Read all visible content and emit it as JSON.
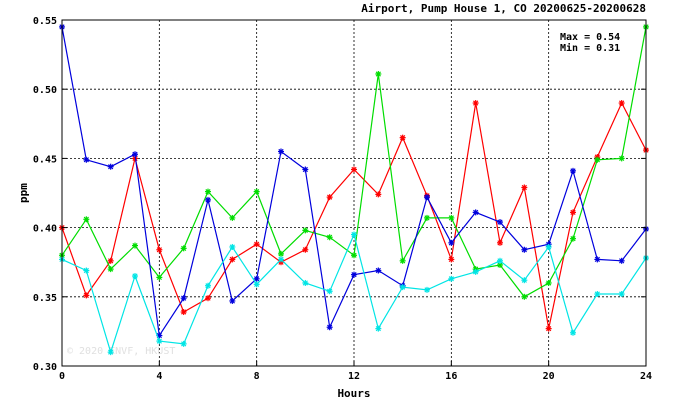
{
  "chart_data": {
    "type": "line",
    "title": "Airport, Pump House 1, CO 20200625-20200628",
    "xlabel": "Hours",
    "ylabel": "ppm",
    "xlim": [
      0,
      24
    ],
    "ylim": [
      0.3,
      0.55
    ],
    "xticks": [
      "0",
      "4",
      "8",
      "12",
      "16",
      "20",
      "24"
    ],
    "xtick_values": [
      0,
      4,
      8,
      12,
      16,
      20,
      24
    ],
    "yticks": [
      "0.30",
      "0.35",
      "0.40",
      "0.45",
      "0.50",
      "0.55"
    ],
    "ytick_values": [
      0.3,
      0.35,
      0.4,
      0.45,
      0.5,
      0.55
    ],
    "grid": true,
    "annotations": {
      "max": "Max = 0.54",
      "min": "Min = 0.31"
    },
    "watermark": "© 2020 ENVF, HKUST",
    "x": [
      0,
      1,
      2,
      3,
      4,
      5,
      6,
      7,
      8,
      9,
      10,
      11,
      12,
      13,
      14,
      15,
      16,
      17,
      18,
      19,
      20,
      21,
      22,
      23,
      24
    ],
    "series": [
      {
        "color": "#ff0000",
        "values": [
          0.4,
          0.351,
          0.376,
          0.45,
          0.384,
          0.339,
          0.349,
          0.377,
          0.388,
          0.375,
          0.384,
          0.422,
          0.442,
          0.424,
          0.465,
          0.423,
          0.377,
          0.49,
          0.389,
          0.429,
          0.327,
          0.411,
          0.451,
          0.49,
          0.456
        ]
      },
      {
        "color": "#00dd00",
        "values": [
          0.38,
          0.406,
          0.37,
          0.387,
          0.364,
          0.385,
          0.426,
          0.407,
          0.426,
          0.381,
          0.398,
          0.393,
          0.38,
          0.511,
          0.376,
          0.407,
          0.407,
          0.37,
          0.373,
          0.35,
          0.36,
          0.392,
          0.449,
          0.45,
          0.545
        ]
      },
      {
        "color": "#0000dd",
        "values": [
          0.545,
          0.449,
          0.444,
          0.453,
          0.322,
          0.349,
          0.42,
          0.347,
          0.363,
          0.455,
          0.442,
          0.328,
          0.366,
          0.369,
          0.358,
          0.422,
          0.389,
          0.411,
          0.404,
          0.384,
          0.388,
          0.441,
          0.377,
          0.376,
          0.399
        ]
      },
      {
        "color": "#00e5e5",
        "values": [
          0.377,
          0.369,
          0.31,
          0.365,
          0.318,
          0.316,
          0.358,
          0.386,
          0.359,
          0.377,
          0.36,
          0.354,
          0.395,
          0.327,
          0.357,
          0.355,
          0.363,
          0.368,
          0.376,
          0.362,
          0.386,
          0.324,
          0.352,
          0.352,
          0.378
        ]
      }
    ]
  }
}
